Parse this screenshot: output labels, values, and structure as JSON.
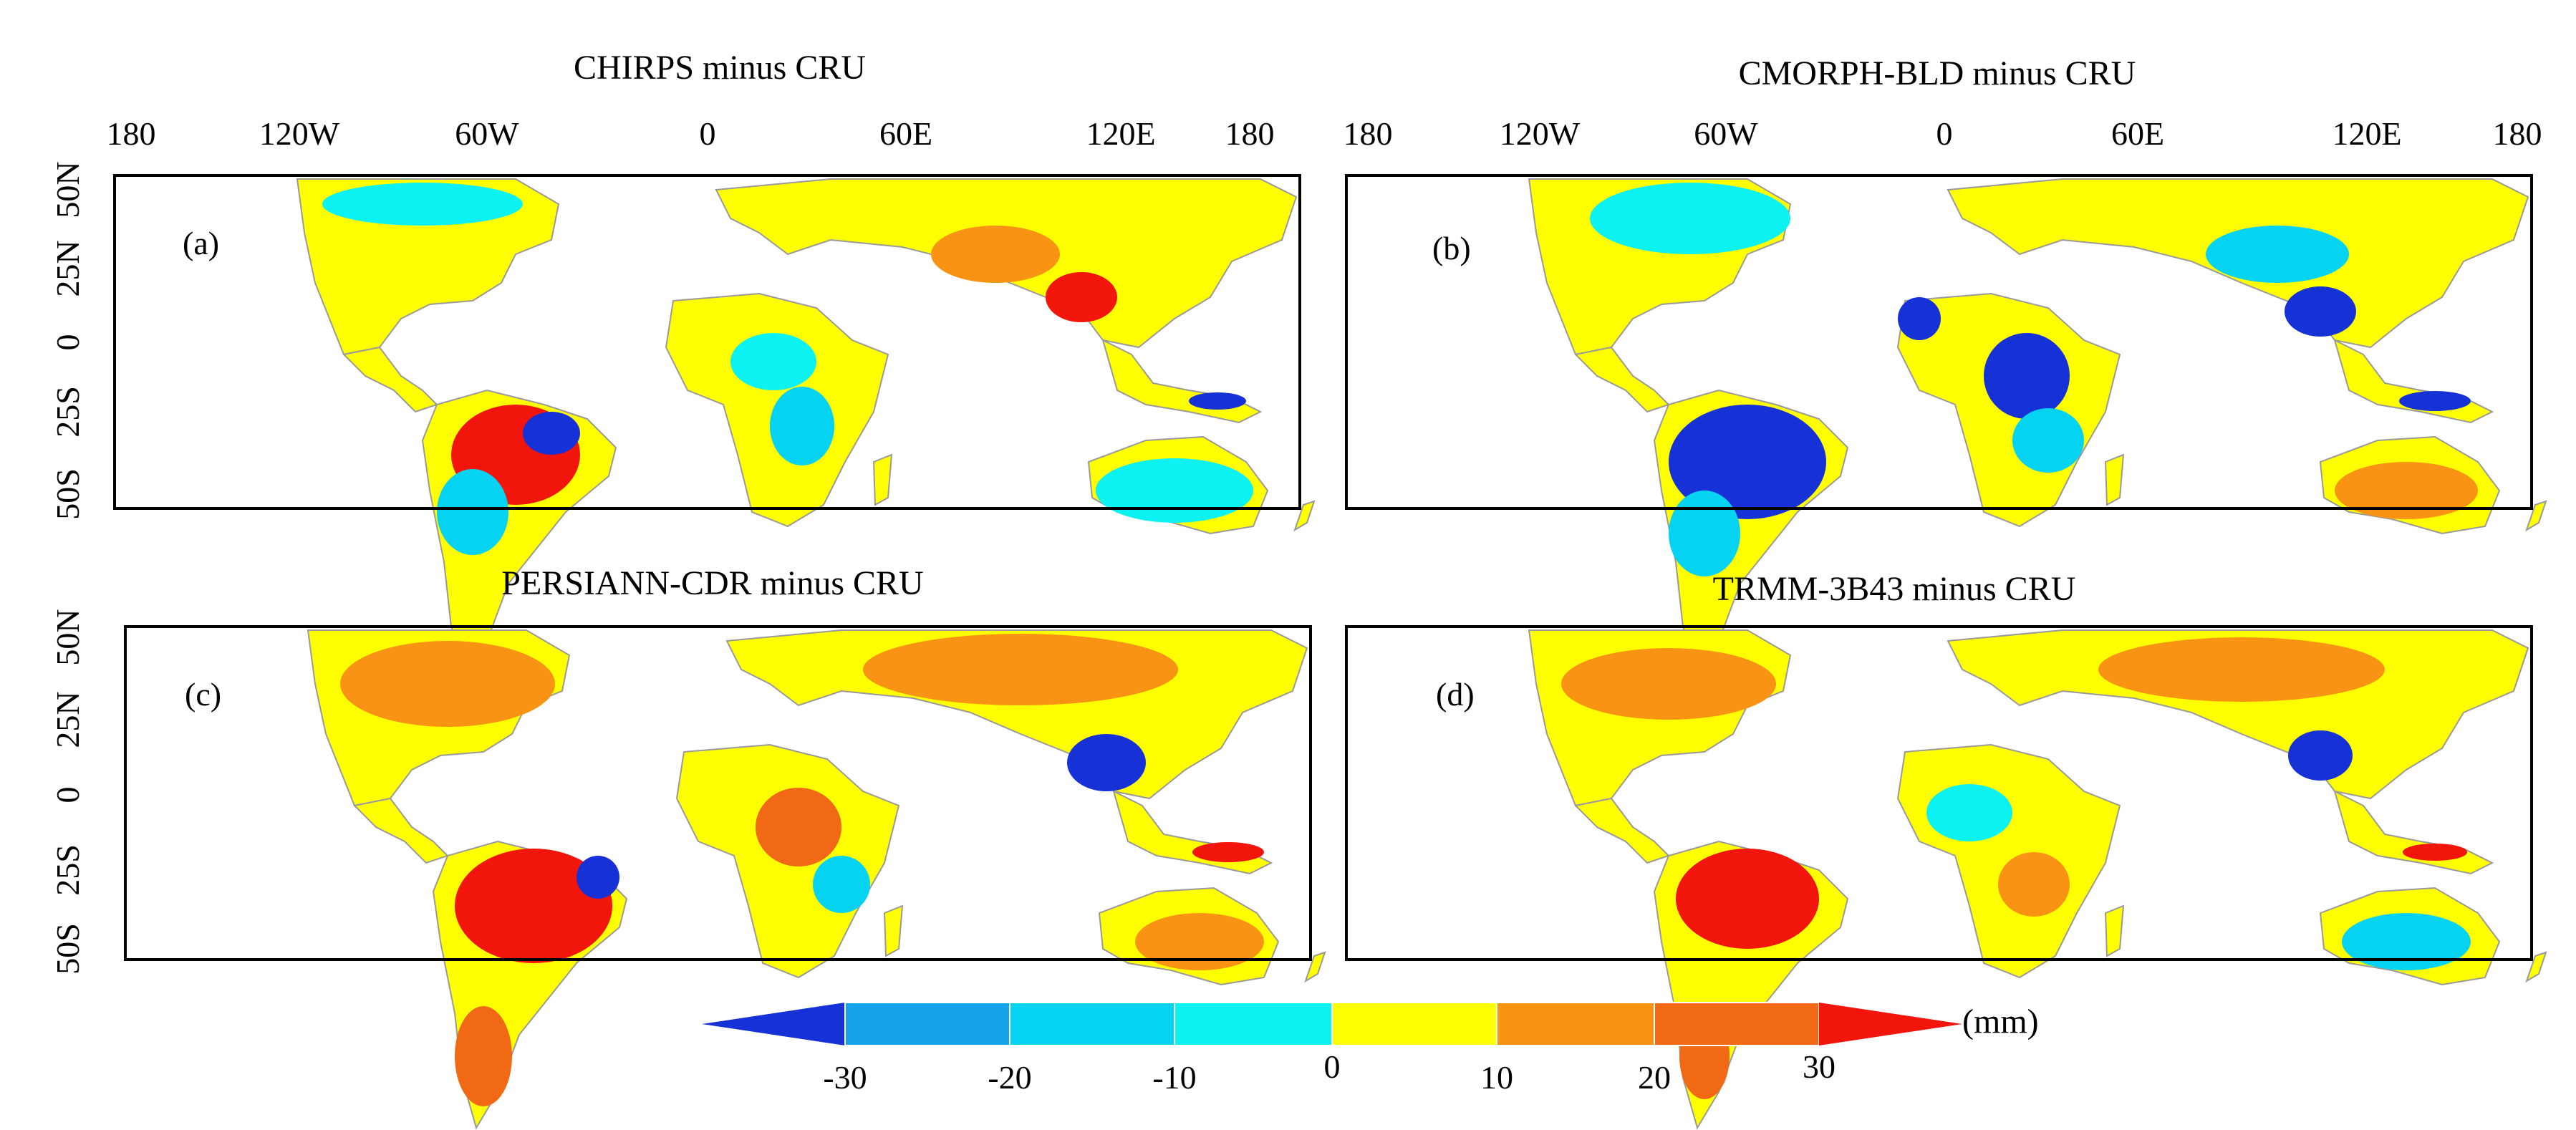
{
  "panels": [
    {
      "id": "a",
      "label": "(a)",
      "title": "CHIRPS minus CRU"
    },
    {
      "id": "b",
      "label": "(b)",
      "title": "CMORPH-BLD minus CRU"
    },
    {
      "id": "c",
      "label": "(c)",
      "title": "PERSIANN-CDR minus CRU"
    },
    {
      "id": "d",
      "label": "(d)",
      "title": "TRMM-3B43 minus CRU"
    }
  ],
  "lon_ticks": [
    "180",
    "120W",
    "60W",
    "0",
    "60E",
    "120E",
    "180"
  ],
  "lat_ticks": [
    "50N",
    "25N",
    "0",
    "25S",
    "50S"
  ],
  "colorbar": {
    "unit": "(mm)",
    "ticks": [
      "-30",
      "-20",
      "-10",
      "0",
      "10",
      "20",
      "30"
    ],
    "colors": {
      "extend_low": "#1631d6",
      "bin_m30_m20": "#13a3e6",
      "bin_m20_m10": "#06d3f2",
      "bin_m10_0": "#0cf2f2",
      "bin_0_10": "#ffff00",
      "bin_10_20": "#f99313",
      "bin_20_30": "#f26915",
      "extend_high": "#f2150b"
    }
  }
}
